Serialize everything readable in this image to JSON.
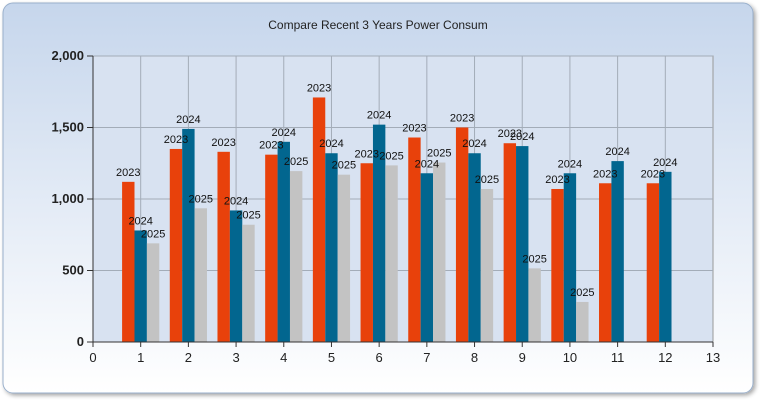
{
  "chart_data": {
    "type": "bar",
    "title": "Compare Recent 3 Years Power Consum",
    "xlabel": "",
    "ylabel": "",
    "x": [
      1,
      2,
      3,
      4,
      5,
      6,
      7,
      8,
      9,
      10,
      11,
      12
    ],
    "xlim": [
      0,
      13
    ],
    "x_ticks": [
      "0",
      "1",
      "2",
      "3",
      "4",
      "5",
      "6",
      "7",
      "8",
      "9",
      "10",
      "11",
      "12",
      "13"
    ],
    "ylim": [
      0,
      2000
    ],
    "y_ticks": [
      {
        "value": 0,
        "label": "0"
      },
      {
        "value": 500,
        "label": "500"
      },
      {
        "value": 1000,
        "label": "1,000"
      },
      {
        "value": 1500,
        "label": "1,500"
      },
      {
        "value": 2000,
        "label": "2,000"
      }
    ],
    "grid": true,
    "legend": "none",
    "series": [
      {
        "name": "2023",
        "color": "#e8410b",
        "values": [
          1120,
          1350,
          1330,
          1310,
          1710,
          1250,
          1430,
          1500,
          1390,
          1070,
          1110,
          1110
        ]
      },
      {
        "name": "2024",
        "color": "#02668f",
        "values": [
          780,
          1490,
          920,
          1400,
          1320,
          1520,
          1180,
          1320,
          1370,
          1180,
          1265,
          1190
        ]
      },
      {
        "name": "2025",
        "color": "#c3c3c3",
        "values": [
          690,
          935,
          820,
          1195,
          1170,
          1235,
          1255,
          1070,
          515,
          280,
          null,
          null
        ]
      }
    ]
  }
}
